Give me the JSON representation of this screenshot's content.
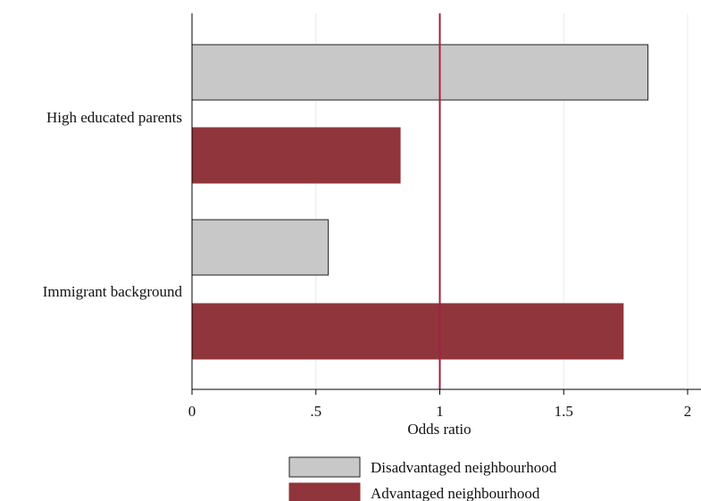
{
  "chart_data": {
    "type": "bar",
    "orientation": "horizontal",
    "title": "",
    "xlabel": "Odds ratio",
    "ylabel": "",
    "xlim": [
      0,
      2.05
    ],
    "xticks": [
      0,
      0.5,
      1,
      1.5,
      2
    ],
    "xtick_labels": [
      "0",
      ".5",
      "1",
      "1.5",
      "2"
    ],
    "categories": [
      "High educated parents",
      "Immigrant background"
    ],
    "series": [
      {
        "name": "Disadvantaged neighbourhood",
        "color": "#c8c8c8",
        "values": [
          1.84,
          0.55
        ]
      },
      {
        "name": "Advantaged neighbourhood",
        "color": "#90353b",
        "values": [
          0.84,
          1.74
        ]
      }
    ],
    "reference_line": {
      "x": 1,
      "color": "#a3203f"
    },
    "grid": true,
    "legend_position": "bottom"
  }
}
